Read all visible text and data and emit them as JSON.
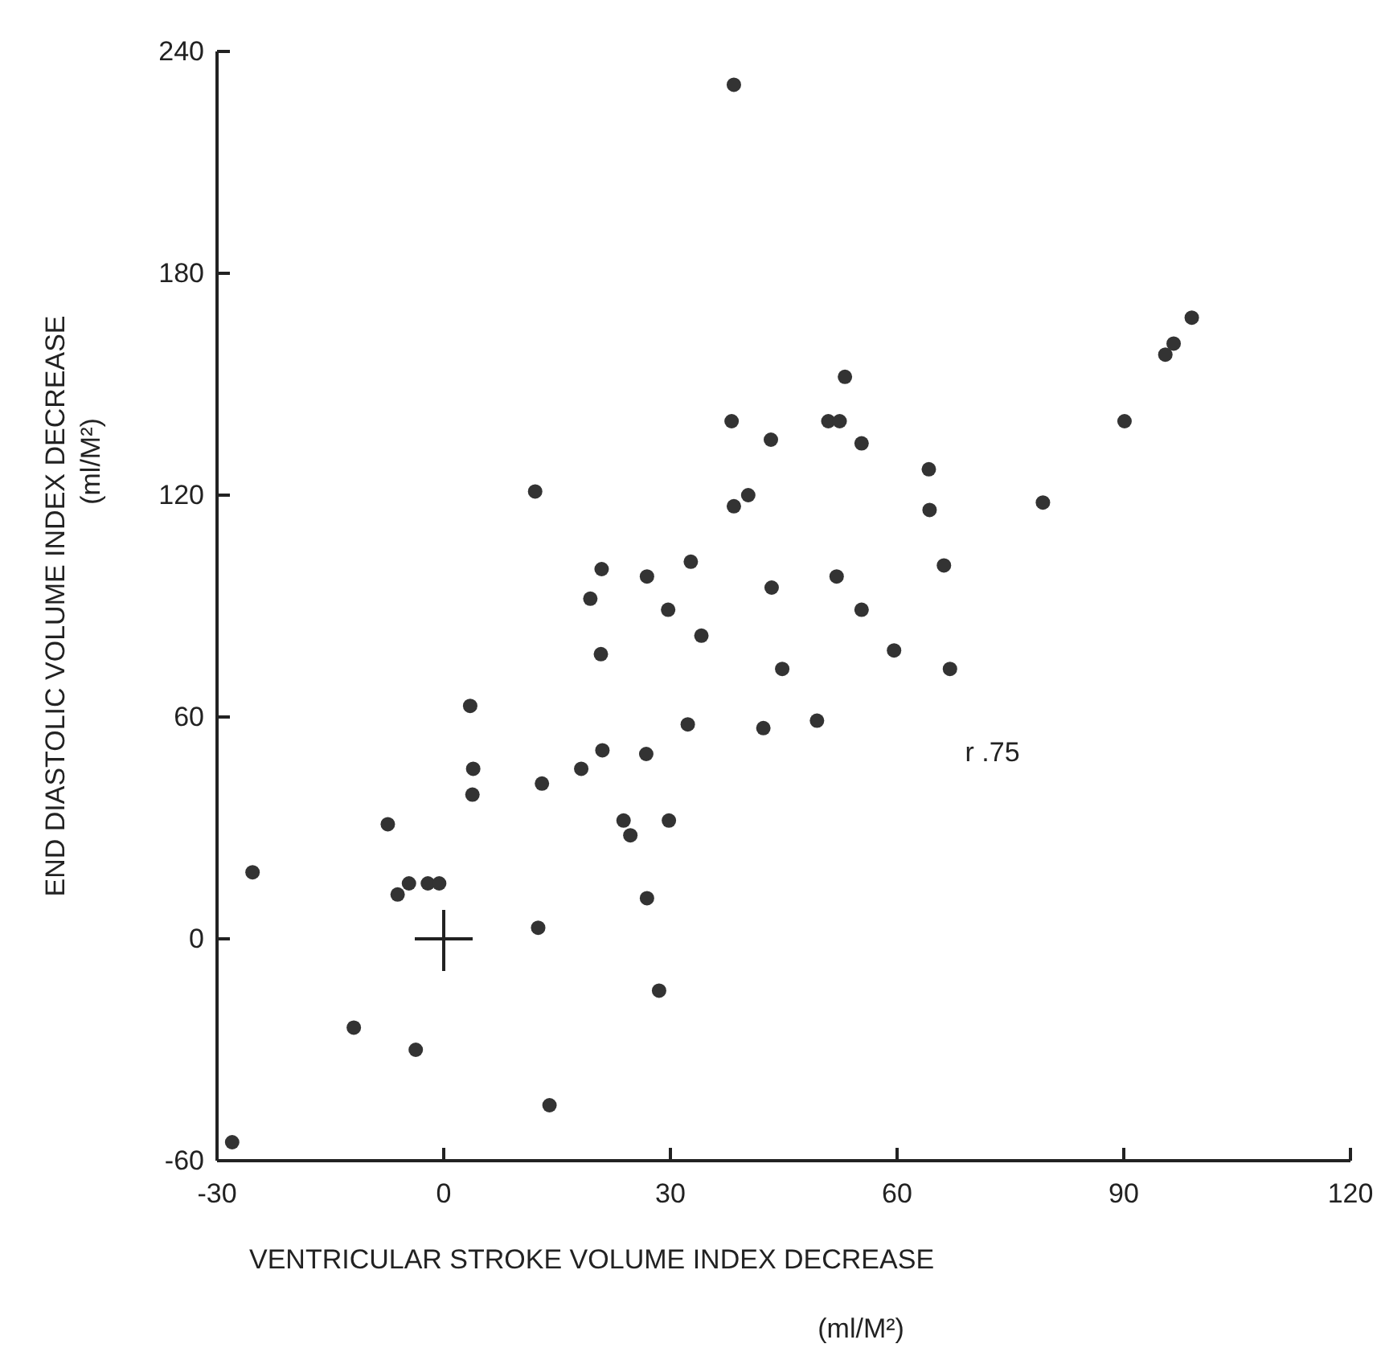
{
  "chart_data": {
    "type": "scatter",
    "xlabel": "VENTRICULAR STROKE VOLUME INDEX DECREASE\n(ml/M²)",
    "ylabel": "END DIASTOLIC VOLUME INDEX DECREASE\n(ml/M²)",
    "xlim": [
      -30,
      120
    ],
    "xticks": [
      -30,
      0,
      30,
      60,
      90,
      120
    ],
    "ylim": [
      -60,
      240
    ],
    "yticks": [
      -60,
      0,
      60,
      120,
      180,
      240
    ],
    "grid": false,
    "annotations": [
      "r .75"
    ],
    "series": [
      {
        "color": "#333333",
        "marker": "circle",
        "x": [
          -28,
          -25.3,
          -7.4,
          -6.1,
          -4.6,
          -2.1,
          -0.6,
          -11.9,
          -3.7,
          3.5,
          3.9,
          3.8,
          12.1,
          12.5,
          13,
          14,
          18.2,
          19.4,
          20.8,
          20.9,
          21,
          23.8,
          24.7,
          26.8,
          26.9,
          26.9,
          28.5,
          29.7,
          29.8,
          32.3,
          32.7,
          34.1,
          38.1,
          38.4,
          38.4,
          40.3,
          42.3,
          43.3,
          43.4,
          44.8,
          49.4,
          50.9,
          52,
          52.4,
          53.1,
          55.3,
          55.3,
          59.6,
          64.2,
          64.3,
          66.2,
          67,
          79.3,
          90.1,
          95.5,
          96.6,
          99
        ],
        "values": [
          -55,
          18,
          31,
          12,
          15,
          15,
          15,
          -24,
          -30,
          63,
          46,
          39,
          121,
          3,
          42,
          -45,
          46,
          92,
          77,
          100,
          51,
          32,
          28,
          50,
          98,
          11,
          -14,
          89,
          32,
          58,
          102,
          82,
          140,
          117,
          231,
          120,
          57,
          135,
          95,
          73,
          59,
          140,
          98,
          140,
          152,
          134,
          89,
          78,
          127,
          116,
          101,
          73,
          118,
          140,
          158,
          161,
          168
        ]
      },
      {
        "color": "#222222",
        "marker": "cross",
        "x": [
          0
        ],
        "values": [
          0
        ]
      }
    ]
  }
}
